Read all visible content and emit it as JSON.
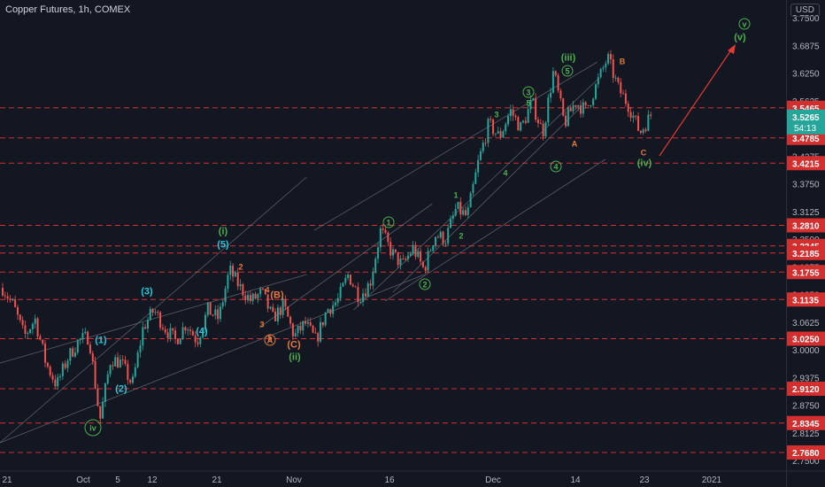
{
  "header": {
    "title": "Copper Futures, 1h, COMEX",
    "currency": "USD"
  },
  "colors": {
    "background": "#131722",
    "up": "#26a69a",
    "down": "#ef5350",
    "level_line": "#d32f2f",
    "channel": "#787b86",
    "wave_green": "#4caf50",
    "wave_teal": "#26c6da",
    "wave_orange": "#e07a3f",
    "price_tag": "#26a69a",
    "level_tag": "#d32f2f",
    "arrow": "#e53935"
  },
  "chart_data": {
    "type": "candlestick",
    "title": "Copper Futures, 1h, COMEX",
    "ylim": [
      2.73,
      3.79
    ],
    "y_ticks": [
      "3.7500",
      "3.6875",
      "3.6250",
      "3.5625",
      "3.5000",
      "3.4375",
      "3.3750",
      "3.3125",
      "3.2500",
      "3.1875",
      "3.1250",
      "3.0625",
      "3.0000",
      "2.9375",
      "2.8750",
      "2.8125",
      "2.7500"
    ],
    "x_ticks": [
      "21",
      "Oct",
      "5",
      "12",
      "21",
      "Nov",
      "16",
      "Dec",
      "14",
      "23",
      "2021"
    ],
    "current_price": "3.5265",
    "countdown": "54:13",
    "levels": [
      "3.5465",
      "3.4785",
      "3.4215",
      "3.2810",
      "3.2345",
      "3.2185",
      "3.1755",
      "3.1135",
      "3.0250",
      "2.9120",
      "2.8345",
      "2.7680"
    ],
    "path": [
      [
        "21",
        3.14
      ],
      [
        "21",
        3.1
      ],
      [
        "21",
        3.03
      ],
      [
        "21",
        3.07
      ],
      [
        "21",
        2.97
      ],
      [
        "21",
        2.92
      ],
      [
        "21",
        2.98
      ],
      [
        "Oct",
        3.02
      ],
      [
        "Oct",
        3.03
      ],
      [
        "Oct",
        2.84
      ],
      [
        "Oct",
        2.98
      ],
      [
        "5",
        2.97
      ],
      [
        "5",
        2.92
      ],
      [
        "5",
        3.05
      ],
      [
        "5",
        3.09
      ],
      [
        "12",
        3.05
      ],
      [
        "12",
        3.02
      ],
      [
        "12",
        3.06
      ],
      [
        "12",
        3.02
      ],
      [
        "12",
        3.09
      ],
      [
        "12",
        3.07
      ],
      [
        "21",
        3.18
      ],
      [
        "21",
        3.14
      ],
      [
        "21",
        3.11
      ],
      [
        "21",
        3.13
      ],
      [
        "21",
        3.07
      ],
      [
        "21",
        3.1
      ],
      [
        "21",
        3.03
      ],
      [
        "Nov",
        3.06
      ],
      [
        "Nov",
        3.02
      ],
      [
        "Nov",
        3.09
      ],
      [
        "Nov",
        3.11
      ],
      [
        "Nov",
        3.17
      ],
      [
        "Nov",
        3.12
      ],
      [
        "Nov",
        3.15
      ],
      [
        "16",
        3.27
      ],
      [
        "16",
        3.22
      ],
      [
        "16",
        3.19
      ],
      [
        "16",
        3.23
      ],
      [
        "16",
        3.18
      ],
      [
        "16",
        3.26
      ],
      [
        "16",
        3.25
      ],
      [
        "16",
        3.32
      ],
      [
        "16",
        3.3
      ],
      [
        "16",
        3.42
      ],
      [
        "Dec",
        3.51
      ],
      [
        "Dec",
        3.48
      ],
      [
        "Dec",
        3.54
      ],
      [
        "Dec",
        3.5
      ],
      [
        "Dec",
        3.56
      ],
      [
        "Dec",
        3.49
      ],
      [
        "14",
        3.63
      ],
      [
        "14",
        3.51
      ],
      [
        "14",
        3.56
      ],
      [
        "14",
        3.54
      ],
      [
        "14",
        3.6
      ],
      [
        "23",
        3.66
      ],
      [
        "23",
        3.59
      ],
      [
        "23",
        3.55
      ],
      [
        "23",
        3.49
      ],
      [
        "23",
        3.53
      ]
    ],
    "path_note_x": "x category labels only; positions distributed across plot",
    "wave_labels": [
      {
        "text": "v",
        "circled": true,
        "color": "green"
      },
      {
        "text": "(v)",
        "circled": false,
        "color": "green"
      },
      {
        "text": "(iii)",
        "circled": false,
        "color": "green"
      },
      {
        "text": "5",
        "circled": true,
        "color": "green"
      },
      {
        "text": "3",
        "circled": true,
        "color": "green"
      },
      {
        "text": "5",
        "circled": false,
        "color": "green"
      },
      {
        "text": "3",
        "circled": false,
        "color": "green"
      },
      {
        "text": "B",
        "circled": false,
        "color": "orange"
      },
      {
        "text": "A",
        "circled": false,
        "color": "orange"
      },
      {
        "text": "C",
        "circled": false,
        "color": "orange"
      },
      {
        "text": "(iv)",
        "circled": false,
        "color": "green"
      },
      {
        "text": "4",
        "circled": true,
        "color": "green"
      },
      {
        "text": "4",
        "circled": false,
        "color": "green"
      },
      {
        "text": "1",
        "circled": false,
        "color": "green"
      },
      {
        "text": "1",
        "circled": true,
        "color": "green"
      },
      {
        "text": "2",
        "circled": false,
        "color": "green"
      },
      {
        "text": "2",
        "circled": true,
        "color": "green"
      },
      {
        "text": "(i)",
        "circled": false,
        "color": "green"
      },
      {
        "text": "(5)",
        "circled": false,
        "color": "teal"
      },
      {
        "text": "2",
        "circled": false,
        "color": "orange"
      },
      {
        "text": "4",
        "circled": false,
        "color": "orange"
      },
      {
        "text": "(B)",
        "circled": false,
        "color": "orange"
      },
      {
        "text": "3",
        "circled": false,
        "color": "orange"
      },
      {
        "text": "5",
        "circled": false,
        "color": "orange"
      },
      {
        "text": "A",
        "circled": true,
        "color": "orange"
      },
      {
        "text": "(C)",
        "circled": false,
        "color": "orange"
      },
      {
        "text": "(ii)",
        "circled": false,
        "color": "green"
      },
      {
        "text": "(3)",
        "circled": false,
        "color": "teal"
      },
      {
        "text": "(4)",
        "circled": false,
        "color": "teal"
      },
      {
        "text": "(1)",
        "circled": false,
        "color": "teal"
      },
      {
        "text": "(2)",
        "circled": false,
        "color": "teal"
      },
      {
        "text": "iv",
        "circled": true,
        "color": "green"
      }
    ]
  }
}
